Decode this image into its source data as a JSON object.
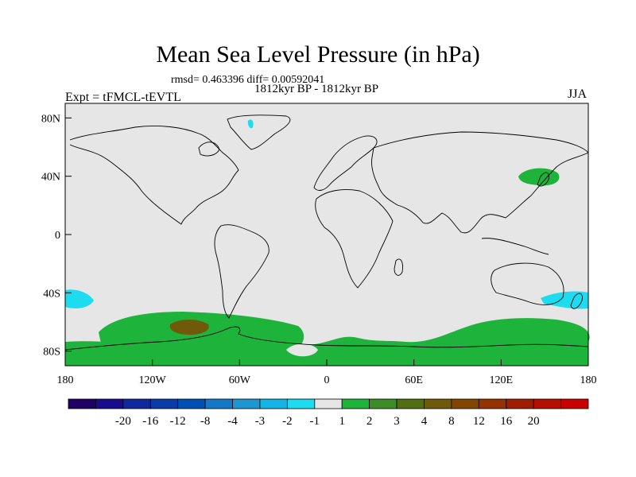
{
  "title": "Mean Sea Level Pressure (in hPa)",
  "stats": "rmsd= 0.463396 diff= 0.00592041",
  "subtitle": "1812kyr BP - 1812kyr BP",
  "experiment": "Expt = tFMCL-tEVTL",
  "season": "JJA",
  "map": {
    "lon_range": [
      -180,
      180
    ],
    "lat_range": [
      -90,
      90
    ],
    "x_ticks": [
      {
        "value": -180,
        "label": "180"
      },
      {
        "value": -120,
        "label": "120W"
      },
      {
        "value": -60,
        "label": "60W"
      },
      {
        "value": 0,
        "label": "0"
      },
      {
        "value": 60,
        "label": "60E"
      },
      {
        "value": 120,
        "label": "120E"
      },
      {
        "value": 180,
        "label": "180"
      }
    ],
    "y_ticks": [
      {
        "value": 80,
        "label": "80N"
      },
      {
        "value": 40,
        "label": "40N"
      },
      {
        "value": 0,
        "label": "0"
      },
      {
        "value": -40,
        "label": "40S"
      },
      {
        "value": -80,
        "label": "80S"
      }
    ],
    "background_color": "#e6e6e6"
  },
  "colorbar": {
    "colors": [
      "#1f0064",
      "#1a0a8c",
      "#10289c",
      "#0a3ca8",
      "#0050b4",
      "#1478c8",
      "#1e96d2",
      "#14b4e6",
      "#1edcf0",
      "#e6e6e6",
      "#1eb43c",
      "#3c8c28",
      "#506e14",
      "#6e5a0a",
      "#824600",
      "#963200",
      "#a01e00",
      "#b40f00",
      "#c80000"
    ],
    "labels": [
      "-20",
      "-16",
      "-12",
      "-8",
      "-4",
      "-3",
      "-2",
      "-1",
      "1",
      "2",
      "3",
      "4",
      "8",
      "12",
      "16",
      "20"
    ]
  }
}
